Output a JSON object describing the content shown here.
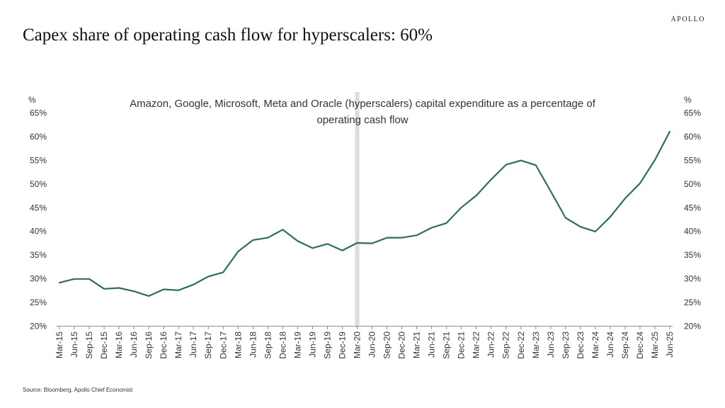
{
  "brand": "APOLLO",
  "title": "Capex share of operating cash flow for hyperscalers: 60%",
  "source": "Source: Bloomberg, Apollo Chief Economist",
  "chart_data": {
    "type": "line",
    "subtitle_lines": [
      "Amazon, Google, Microsoft, Meta and Oracle (hyperscalers) capital expenditure as a percentage of",
      "operating cash flow"
    ],
    "y_unit_left": "%",
    "y_unit_right": "%",
    "ylim": [
      20,
      65
    ],
    "y_ticks": [
      20,
      25,
      30,
      35,
      40,
      45,
      50,
      55,
      60,
      65
    ],
    "y_tick_suffix": "%",
    "x_tick_labels": [
      "Mar-15",
      "Jun-15",
      "Sep-15",
      "Dec-15",
      "Mar-16",
      "Jun-16",
      "Sep-16",
      "Dec-16",
      "Mar-17",
      "Jun-17",
      "Sep-17",
      "Dec-17",
      "Mar-18",
      "Jun-18",
      "Sep-18",
      "Dec-18",
      "Mar-19",
      "Jun-19",
      "Sep-19",
      "Dec-19",
      "Mar-20",
      "Jun-20",
      "Sep-20",
      "Dec-20",
      "Mar-21",
      "Jun-21",
      "Sep-21",
      "Dec-21",
      "Mar-22",
      "Jun-22",
      "Sep-22",
      "Dec-22",
      "Mar-23",
      "Jun-23",
      "Sep-23",
      "Dec-23",
      "Mar-24",
      "Jun-24",
      "Sep-24",
      "Dec-24",
      "Mar-25",
      "Jun-25"
    ],
    "shaded_period": "Mar-20",
    "grid": false,
    "line_color": "#2e6e58",
    "shade_color": "#dddddd",
    "series": [
      {
        "values": [
          29.1,
          29.9,
          29.9,
          27.8,
          28.0,
          27.3,
          26.3,
          27.7,
          27.5,
          28.7,
          30.4,
          31.3,
          35.7,
          38.1,
          38.6,
          40.3,
          37.9,
          36.4,
          37.3,
          35.9,
          37.5,
          37.4,
          38.6,
          38.6,
          39.1,
          40.7,
          41.7,
          45.0,
          47.5,
          50.9,
          54.0,
          54.9,
          53.9,
          48.4,
          42.8,
          40.9,
          39.9,
          43.0,
          46.9,
          50.1,
          55.0,
          61.0
        ]
      }
    ]
  }
}
